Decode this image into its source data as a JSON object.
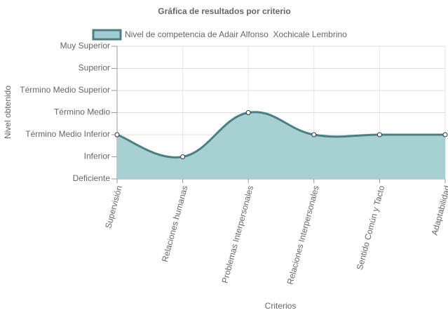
{
  "chart_data": {
    "type": "area",
    "title": "Gráfica de resultados por criterio",
    "x_label": "Criterios",
    "y_label": "Nivel obtenido",
    "categories": [
      "Supervisión",
      "Relaciones humanas",
      "Problemas Interpersonales",
      "Relaciones Interpersonales",
      "Sentido Común y Tacto",
      "Adaptabilidad"
    ],
    "series": [
      {
        "name": "Nivel de competencia de Adair Alfonso  Xochicale Lembrino",
        "color": "#4e7d84",
        "fill": "#a2cdd0",
        "values": [
          2,
          1,
          3,
          2,
          2,
          2
        ]
      }
    ],
    "ylim": [
      0,
      6
    ],
    "yticks": [
      {
        "value": 0,
        "label": "Deficiente"
      },
      {
        "value": 1,
        "label": "Inferior"
      },
      {
        "value": 2,
        "label": "Término Medio Inferior"
      },
      {
        "value": 3,
        "label": "Término Medio"
      },
      {
        "value": 4,
        "label": "Término Medio Superior"
      },
      {
        "value": 5,
        "label": "Superior"
      },
      {
        "value": 6,
        "label": "Muy Superior"
      }
    ],
    "grid": true,
    "legend": "top"
  }
}
